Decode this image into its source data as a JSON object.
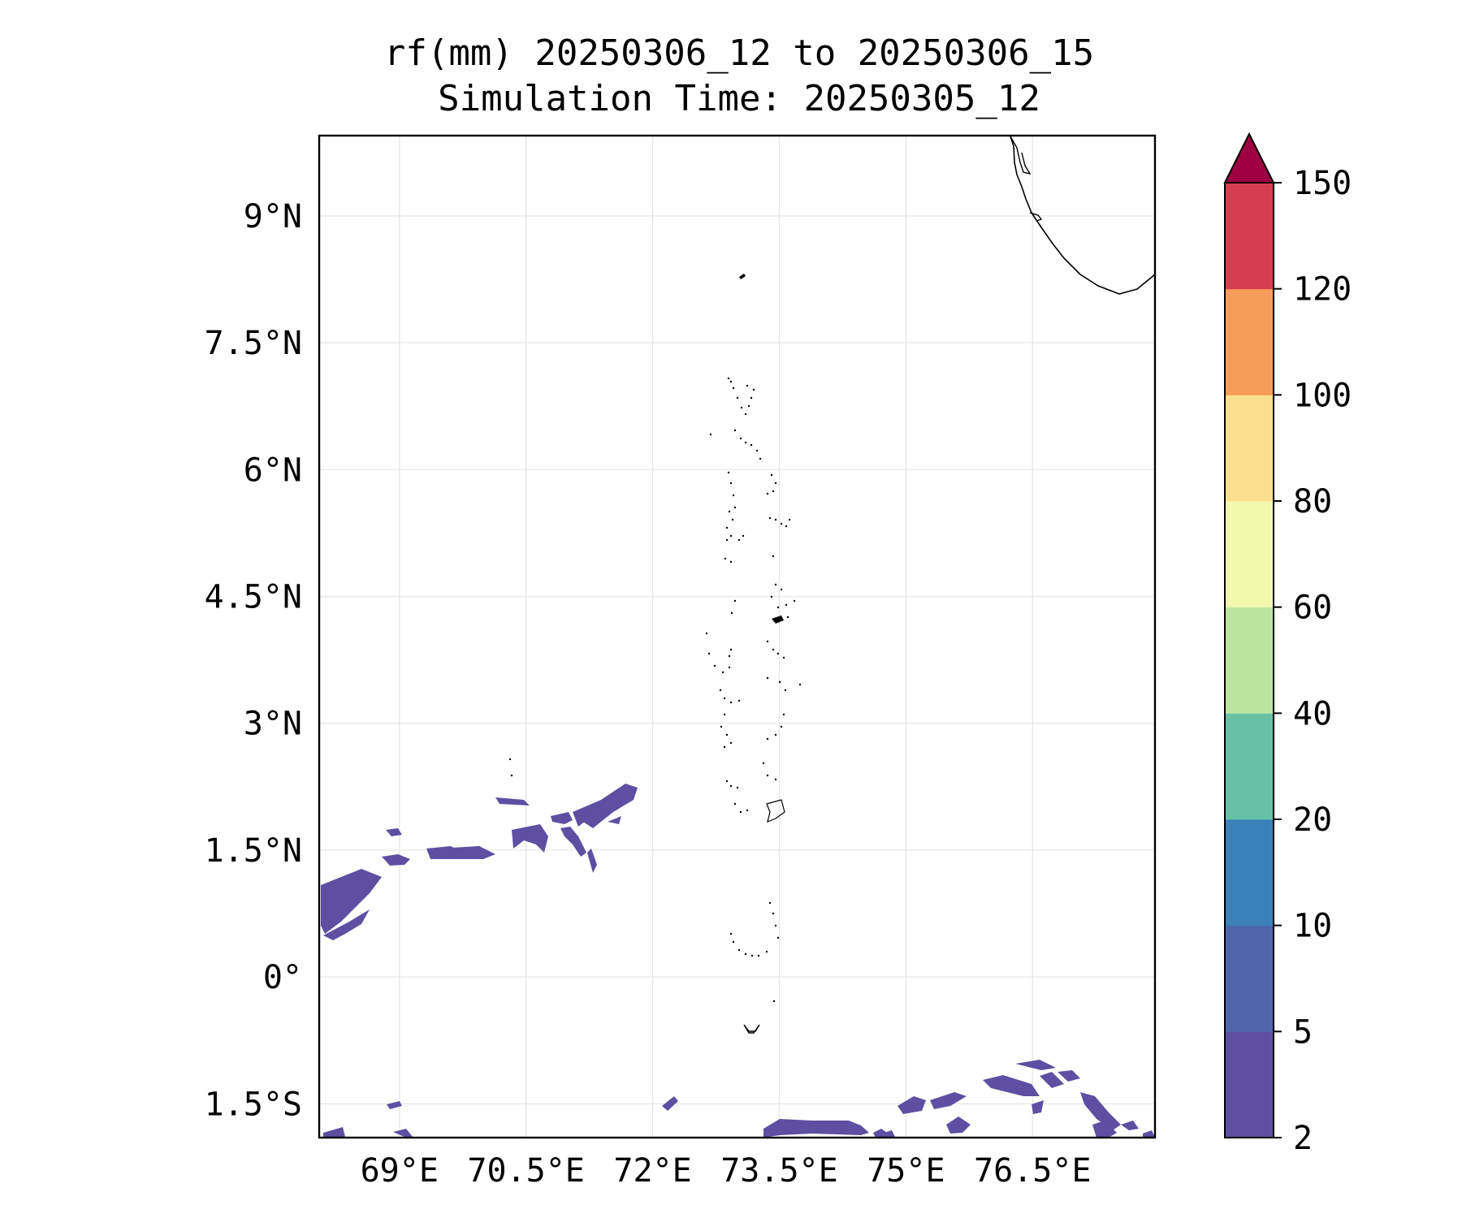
{
  "title": {
    "line1": "rf(mm) 20250306_12 to 20250306_15",
    "line2": "Simulation Time: 20250305_12"
  },
  "map": {
    "lat_labels": [
      "9°N",
      "7.5°N",
      "6°N",
      "4.5°N",
      "3°N",
      "1.5°N",
      "0°",
      "1.5°S"
    ],
    "lon_labels": [
      "69°E",
      "70.5°E",
      "72°E",
      "73.5°E",
      "75°E",
      "76.5°E"
    ],
    "lon_range": [
      68.05,
      77.95
    ],
    "lat_range": [
      -1.9,
      9.95
    ],
    "gridlines": true,
    "rain_fill_color": "#5e4fa2"
  },
  "colorbar": {
    "ticks": [
      "2",
      "5",
      "10",
      "20",
      "40",
      "60",
      "80",
      "100",
      "120",
      "150"
    ],
    "colors": [
      "#5e4fa2",
      "#4f66ad",
      "#3a80b9",
      "#66c2a5",
      "#bbe4a0",
      "#f2f9ad",
      "#fbdf8e",
      "#f89c59",
      "#d53e4f"
    ],
    "extend_color": "#9e0142",
    "extend": "max"
  }
}
